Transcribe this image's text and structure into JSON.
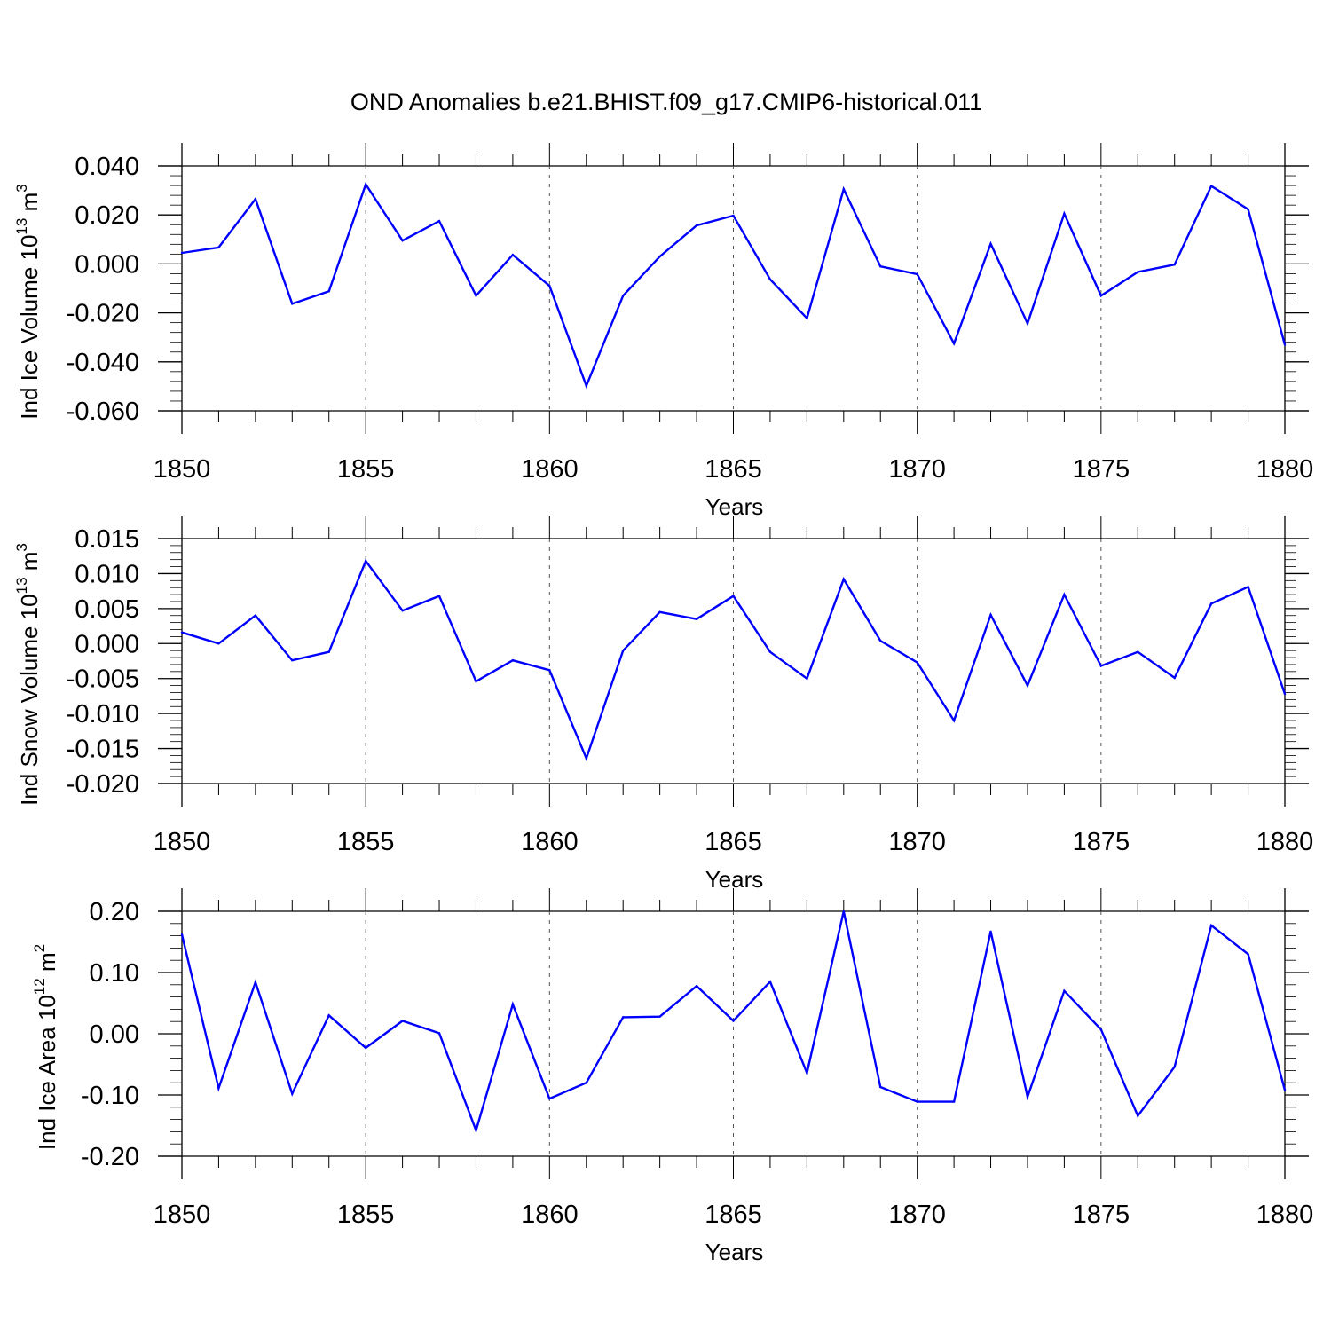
{
  "title": "OND Anomalies b.e21.BHIST.f09_g17.CMIP6-historical.011",
  "line_color": "#0000ff",
  "chart_data": [
    {
      "type": "line",
      "ylabel_main": "Ind Ice Volume 10",
      "ylabel_exp": "13",
      "ylabel_unit": "m",
      "ylabel_unit_exp": "3",
      "xlabel": "Years",
      "xlim": [
        1850,
        1880
      ],
      "ylim": [
        -0.06,
        0.04
      ],
      "x_ticks": [
        "1850",
        "1855",
        "1860",
        "1865",
        "1870",
        "1875",
        "1880"
      ],
      "y_ticks": [
        "0.040",
        "0.020",
        "0.000",
        "-0.020",
        "-0.040",
        "-0.060"
      ],
      "y_tick_values": [
        0.04,
        0.02,
        0.0,
        -0.02,
        -0.04,
        -0.06
      ],
      "y_minor_step": 0.004,
      "x": [
        1850,
        1851,
        1852,
        1853,
        1854,
        1855,
        1856,
        1857,
        1858,
        1859,
        1860,
        1861,
        1862,
        1863,
        1864,
        1865,
        1866,
        1867,
        1868,
        1869,
        1870,
        1871,
        1872,
        1873,
        1874,
        1875,
        1876,
        1877,
        1878,
        1879,
        1880
      ],
      "values": [
        0.0045,
        0.0067,
        0.0265,
        -0.0163,
        -0.0112,
        0.0325,
        0.0095,
        0.0175,
        -0.013,
        0.0037,
        -0.009,
        -0.0498,
        -0.013,
        0.003,
        0.0157,
        0.0197,
        -0.0063,
        -0.0222,
        0.0305,
        -0.001,
        -0.0042,
        -0.0325,
        0.0082,
        -0.0243,
        0.0205,
        -0.013,
        -0.0033,
        -0.0003,
        0.0318,
        0.0223,
        -0.033
      ]
    },
    {
      "type": "line",
      "ylabel_main": "Ind Snow Volume 10",
      "ylabel_exp": "13",
      "ylabel_unit": "m",
      "ylabel_unit_exp": "3",
      "xlabel": "Years",
      "xlim": [
        1850,
        1880
      ],
      "ylim": [
        -0.02,
        0.015
      ],
      "x_ticks": [
        "1850",
        "1855",
        "1860",
        "1865",
        "1870",
        "1875",
        "1880"
      ],
      "y_ticks": [
        "0.015",
        "0.010",
        "0.005",
        "0.000",
        "-0.005",
        "-0.010",
        "-0.015",
        "-0.020"
      ],
      "y_tick_values": [
        0.015,
        0.01,
        0.005,
        0.0,
        -0.005,
        -0.01,
        -0.015,
        -0.02
      ],
      "y_minor_step": 0.001,
      "x": [
        1850,
        1851,
        1852,
        1853,
        1854,
        1855,
        1856,
        1857,
        1858,
        1859,
        1860,
        1861,
        1862,
        1863,
        1864,
        1865,
        1866,
        1867,
        1868,
        1869,
        1870,
        1871,
        1872,
        1873,
        1874,
        1875,
        1876,
        1877,
        1878,
        1879,
        1880
      ],
      "values": [
        0.0016,
        0.0,
        0.004,
        -0.0024,
        -0.0012,
        0.0118,
        0.0047,
        0.0068,
        -0.0054,
        -0.0024,
        -0.0038,
        -0.0164,
        -0.001,
        0.0045,
        0.0035,
        0.0068,
        -0.0012,
        -0.005,
        0.0092,
        0.0004,
        -0.0027,
        -0.011,
        0.0041,
        -0.006,
        0.007,
        -0.0032,
        -0.0012,
        -0.0049,
        0.0057,
        0.0081,
        -0.0072
      ]
    },
    {
      "type": "line",
      "ylabel_main": "Ind Ice Area 10",
      "ylabel_exp": "12",
      "ylabel_unit": "m",
      "ylabel_unit_exp": "2",
      "xlabel": "Years",
      "xlim": [
        1850,
        1880
      ],
      "ylim": [
        -0.2,
        0.2
      ],
      "x_ticks": [
        "1850",
        "1855",
        "1860",
        "1865",
        "1870",
        "1875",
        "1880"
      ],
      "y_ticks": [
        "0.20",
        "0.10",
        "0.00",
        "-0.10",
        "-0.20"
      ],
      "y_tick_values": [
        0.2,
        0.1,
        0.0,
        -0.1,
        -0.2
      ],
      "y_minor_step": 0.02,
      "x": [
        1850,
        1851,
        1852,
        1853,
        1854,
        1855,
        1856,
        1857,
        1858,
        1859,
        1860,
        1861,
        1862,
        1863,
        1864,
        1865,
        1866,
        1867,
        1868,
        1869,
        1870,
        1871,
        1872,
        1873,
        1874,
        1875,
        1876,
        1877,
        1878,
        1879,
        1880
      ],
      "values": [
        0.162,
        -0.089,
        0.084,
        -0.098,
        0.03,
        -0.023,
        0.021,
        0.001,
        -0.158,
        0.048,
        -0.106,
        -0.08,
        0.027,
        0.028,
        0.078,
        0.021,
        0.085,
        -0.064,
        0.2,
        -0.087,
        -0.111,
        -0.111,
        0.167,
        -0.103,
        0.07,
        0.007,
        -0.134,
        -0.054,
        0.177,
        0.13,
        -0.092
      ]
    }
  ]
}
